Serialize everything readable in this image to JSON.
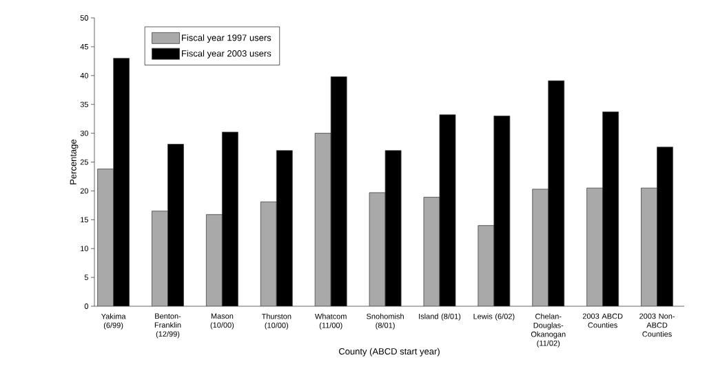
{
  "chart_data": {
    "type": "bar",
    "xlabel": "County (ABCD start year)",
    "ylabel": "Percentage",
    "categories": [
      "Yakima (6/99)",
      "Benton-Franklin (12/99)",
      "Mason (10/00)",
      "Thurston (10/00)",
      "Whatcom (11/00)",
      "Snohomish (8/01)",
      "Island (8/01)",
      "Lewis (6/02)",
      "Chelan-Douglas-Okanogan (11/02)",
      "2003 ABCD Counties",
      "2003 Non-ABCD Counties"
    ],
    "series": [
      {
        "name": "Fiscal year 1997 users",
        "color": "#a9a9a9",
        "values": [
          23.8,
          16.5,
          15.9,
          18.1,
          30.0,
          19.7,
          18.9,
          14.0,
          20.3,
          20.5,
          20.5
        ]
      },
      {
        "name": "Fiscal year 2003 users",
        "color": "#000000",
        "values": [
          43.0,
          28.1,
          30.2,
          27.0,
          39.8,
          27.0,
          33.2,
          33.0,
          39.1,
          33.7,
          27.6
        ]
      }
    ],
    "ylim": [
      0,
      50
    ],
    "yticks": [
      0,
      5,
      10,
      15,
      20,
      25,
      30,
      35,
      40,
      45,
      50
    ],
    "grid": false,
    "legend": "top left"
  }
}
